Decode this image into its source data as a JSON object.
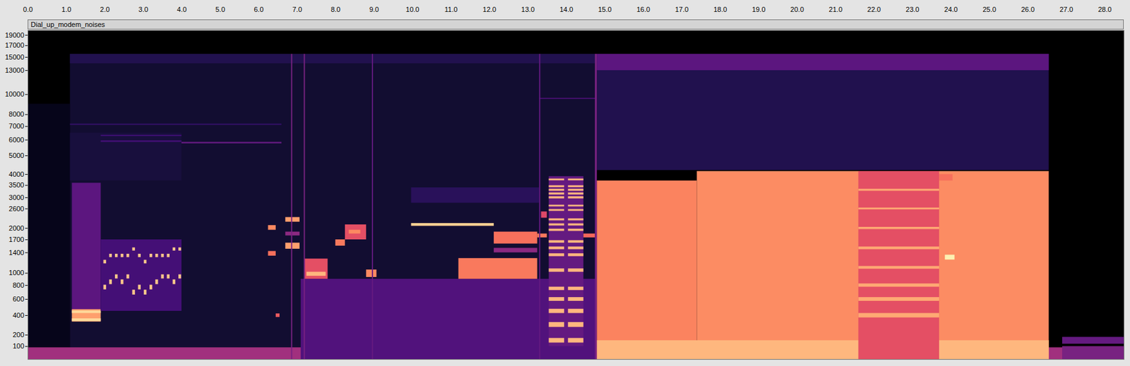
{
  "chart_data": {
    "type": "heatmap",
    "title": "Dial_up_modem_noises",
    "xlim": [
      0,
      28.5
    ],
    "xticks": [
      {
        "value": 0,
        "label": "0.0"
      },
      {
        "value": 1,
        "label": "1.0"
      },
      {
        "value": 2,
        "label": "2.0"
      },
      {
        "value": 3,
        "label": "3.0"
      },
      {
        "value": 4,
        "label": "4.0"
      },
      {
        "value": 5,
        "label": "5.0"
      },
      {
        "value": 6,
        "label": "6.0"
      },
      {
        "value": 7,
        "label": "7.0"
      },
      {
        "value": 8,
        "label": "8.0"
      },
      {
        "value": 9,
        "label": "9.0"
      },
      {
        "value": 10,
        "label": "10.0"
      },
      {
        "value": 11,
        "label": "11.0"
      },
      {
        "value": 12,
        "label": "12.0"
      },
      {
        "value": 13,
        "label": "13.0"
      },
      {
        "value": 14,
        "label": "14.0"
      },
      {
        "value": 15,
        "label": "15.0"
      },
      {
        "value": 16,
        "label": "16.0"
      },
      {
        "value": 17,
        "label": "17.0"
      },
      {
        "value": 18,
        "label": "18.0"
      },
      {
        "value": 19,
        "label": "19.0"
      },
      {
        "value": 20,
        "label": "20.0"
      },
      {
        "value": 21,
        "label": "21.0"
      },
      {
        "value": 22,
        "label": "22.0"
      },
      {
        "value": 23,
        "label": "23.0"
      },
      {
        "value": 24,
        "label": "24.0"
      },
      {
        "value": 25,
        "label": "25.0"
      },
      {
        "value": 26,
        "label": "26.0"
      },
      {
        "value": 27,
        "label": "27.0"
      },
      {
        "value": 28,
        "label": "28.0"
      }
    ],
    "ylim": [
      0,
      20000
    ],
    "yticks": [
      100,
      200,
      400,
      600,
      800,
      1000,
      1400,
      1700,
      2000,
      2600,
      3000,
      3500,
      4000,
      5000,
      6000,
      7000,
      8000,
      10000,
      13000,
      15000,
      17000,
      19000
    ],
    "grid": false,
    "zlim": [
      0,
      100
    ],
    "cells": [
      {
        "t0": 0,
        "t1": 1.1,
        "f0": 0,
        "f1": 9000,
        "level": 5
      },
      {
        "t0": 1.1,
        "t1": 14.8,
        "f0": 0,
        "f1": 15500,
        "level": 9
      },
      {
        "t0": 1.1,
        "t1": 14.8,
        "f0": 14000,
        "f1": 15500,
        "level": 14
      },
      {
        "t0": 0,
        "t1": 27.2,
        "f0": 0,
        "f1": 90,
        "level": 45
      },
      {
        "t0": 1.1,
        "t1": 4.0,
        "f0": 3700,
        "f1": 6500,
        "level": 11
      },
      {
        "t0": 1.15,
        "t1": 1.9,
        "f0": 450,
        "f1": 3600,
        "level": 28
      },
      {
        "t0": 1.15,
        "t1": 1.9,
        "f0": 330,
        "f1": 470,
        "level": 80
      },
      {
        "t0": 1.15,
        "t1": 1.9,
        "f0": 335,
        "f1": 365,
        "level": 92
      },
      {
        "t0": 1.15,
        "t1": 1.9,
        "f0": 425,
        "f1": 455,
        "level": 92
      },
      {
        "t0": 1.9,
        "t1": 4.0,
        "f0": 450,
        "f1": 1700,
        "level": 22
      },
      {
        "t0": 1.9,
        "t1": 4.0,
        "f0": 5850,
        "f1": 5950,
        "level": 22
      },
      {
        "t0": 1.9,
        "t1": 4.0,
        "f0": 6250,
        "f1": 6350,
        "level": 20
      },
      {
        "t0": 1.97,
        "t1": 2.04,
        "f0": 735,
        "f1": 805,
        "level": 88
      },
      {
        "t0": 1.97,
        "t1": 2.04,
        "f0": 1175,
        "f1": 1245,
        "level": 88
      },
      {
        "t0": 2.12,
        "t1": 2.19,
        "f0": 815,
        "f1": 890,
        "level": 88
      },
      {
        "t0": 2.12,
        "t1": 2.19,
        "f0": 1300,
        "f1": 1370,
        "level": 88
      },
      {
        "t0": 2.27,
        "t1": 2.34,
        "f0": 905,
        "f1": 975,
        "level": 88
      },
      {
        "t0": 2.27,
        "t1": 2.34,
        "f0": 1300,
        "f1": 1370,
        "level": 88
      },
      {
        "t0": 2.42,
        "t1": 2.49,
        "f0": 815,
        "f1": 890,
        "level": 88
      },
      {
        "t0": 2.42,
        "t1": 2.49,
        "f0": 1300,
        "f1": 1370,
        "level": 88
      },
      {
        "t0": 2.57,
        "t1": 2.64,
        "f0": 905,
        "f1": 975,
        "level": 88
      },
      {
        "t0": 2.57,
        "t1": 2.64,
        "f0": 1300,
        "f1": 1370,
        "level": 88
      },
      {
        "t0": 2.72,
        "t1": 2.79,
        "f0": 660,
        "f1": 730,
        "level": 88
      },
      {
        "t0": 2.72,
        "t1": 2.79,
        "f0": 1440,
        "f1": 1510,
        "level": 88
      },
      {
        "t0": 2.87,
        "t1": 2.94,
        "f0": 735,
        "f1": 805,
        "level": 88
      },
      {
        "t0": 2.87,
        "t1": 2.94,
        "f0": 1300,
        "f1": 1370,
        "level": 88
      },
      {
        "t0": 3.02,
        "t1": 3.09,
        "f0": 660,
        "f1": 730,
        "level": 88
      },
      {
        "t0": 3.02,
        "t1": 3.09,
        "f0": 1175,
        "f1": 1245,
        "level": 88
      },
      {
        "t0": 3.17,
        "t1": 3.24,
        "f0": 735,
        "f1": 805,
        "level": 88
      },
      {
        "t0": 3.17,
        "t1": 3.24,
        "f0": 1300,
        "f1": 1370,
        "level": 88
      },
      {
        "t0": 3.32,
        "t1": 3.39,
        "f0": 815,
        "f1": 890,
        "level": 88
      },
      {
        "t0": 3.32,
        "t1": 3.39,
        "f0": 1300,
        "f1": 1370,
        "level": 88
      },
      {
        "t0": 3.47,
        "t1": 3.54,
        "f0": 905,
        "f1": 975,
        "level": 88
      },
      {
        "t0": 3.47,
        "t1": 3.54,
        "f0": 1300,
        "f1": 1370,
        "level": 88
      },
      {
        "t0": 3.62,
        "t1": 3.69,
        "f0": 905,
        "f1": 975,
        "level": 88
      },
      {
        "t0": 3.62,
        "t1": 3.69,
        "f0": 1300,
        "f1": 1370,
        "level": 88
      },
      {
        "t0": 3.77,
        "t1": 3.84,
        "f0": 815,
        "f1": 890,
        "level": 88
      },
      {
        "t0": 3.77,
        "t1": 3.84,
        "f0": 1440,
        "f1": 1510,
        "level": 88
      },
      {
        "t0": 3.92,
        "t1": 3.99,
        "f0": 905,
        "f1": 975,
        "level": 88
      },
      {
        "t0": 3.92,
        "t1": 3.99,
        "f0": 1440,
        "f1": 1510,
        "level": 88
      },
      {
        "t0": 4.0,
        "t1": 6.6,
        "f0": 5750,
        "f1": 5850,
        "level": 30
      },
      {
        "t0": 1.1,
        "t1": 6.6,
        "f0": 7100,
        "f1": 7200,
        "level": 18
      },
      {
        "t0": 6.25,
        "t1": 6.45,
        "f0": 1950,
        "f1": 2080,
        "level": 75
      },
      {
        "t0": 6.25,
        "t1": 6.45,
        "f0": 1330,
        "f1": 1430,
        "level": 70
      },
      {
        "t0": 6.45,
        "t1": 6.55,
        "f0": 380,
        "f1": 420,
        "level": 65
      },
      {
        "t0": 6.7,
        "t1": 7.07,
        "f0": 2180,
        "f1": 2320,
        "level": 80
      },
      {
        "t0": 6.7,
        "t1": 7.07,
        "f0": 1480,
        "f1": 1620,
        "level": 80
      },
      {
        "t0": 6.7,
        "t1": 7.07,
        "f0": 1800,
        "f1": 1900,
        "level": 40
      },
      {
        "t0": 7.1,
        "t1": 14.8,
        "f0": 0,
        "f1": 900,
        "level": 25
      },
      {
        "t0": 7.2,
        "t1": 7.8,
        "f0": 900,
        "f1": 1270,
        "level": 62
      },
      {
        "t0": 7.25,
        "t1": 7.75,
        "f0": 950,
        "f1": 1020,
        "level": 85
      },
      {
        "t0": 8.0,
        "t1": 8.25,
        "f0": 1550,
        "f1": 1700,
        "level": 72
      },
      {
        "t0": 8.25,
        "t1": 8.8,
        "f0": 1700,
        "f1": 2100,
        "level": 62
      },
      {
        "t0": 8.35,
        "t1": 8.65,
        "f0": 1850,
        "f1": 1950,
        "level": 75
      },
      {
        "t0": 8.8,
        "t1": 9.07,
        "f0": 930,
        "f1": 1060,
        "level": 75
      },
      {
        "t0": 9.97,
        "t1": 12.12,
        "f0": 2060,
        "f1": 2140,
        "level": 90
      },
      {
        "t0": 9.97,
        "t1": 13.3,
        "f0": 2800,
        "f1": 3400,
        "level": 16
      },
      {
        "t0": 11.2,
        "t1": 13.25,
        "f0": 900,
        "f1": 1280,
        "level": 72
      },
      {
        "t0": 12.12,
        "t1": 13.25,
        "f0": 1600,
        "f1": 1900,
        "level": 70
      },
      {
        "t0": 12.12,
        "t1": 13.25,
        "f0": 1400,
        "f1": 1500,
        "level": 40
      },
      {
        "t0": 13.25,
        "t1": 13.5,
        "f0": 1750,
        "f1": 1850,
        "level": 72
      },
      {
        "t0": 13.35,
        "t1": 13.5,
        "f0": 2300,
        "f1": 2500,
        "level": 60
      },
      {
        "t0": 13.55,
        "t1": 14.45,
        "f0": 100,
        "f1": 3900,
        "level": 30
      },
      {
        "t0": 13.55,
        "t1": 13.95,
        "f0": 130,
        "f1": 170,
        "level": 85
      },
      {
        "t0": 13.55,
        "t1": 13.95,
        "f0": 275,
        "f1": 325,
        "level": 85
      },
      {
        "t0": 13.55,
        "t1": 13.95,
        "f0": 425,
        "f1": 475,
        "level": 85
      },
      {
        "t0": 13.55,
        "t1": 13.95,
        "f0": 575,
        "f1": 625,
        "level": 85
      },
      {
        "t0": 13.55,
        "t1": 13.95,
        "f0": 725,
        "f1": 775,
        "level": 85
      },
      {
        "t0": 13.55,
        "t1": 13.95,
        "f0": 1020,
        "f1": 1080,
        "level": 85
      },
      {
        "t0": 13.55,
        "t1": 13.95,
        "f0": 1320,
        "f1": 1380,
        "level": 85
      },
      {
        "t0": 13.55,
        "t1": 13.95,
        "f0": 1470,
        "f1": 1530,
        "level": 85
      },
      {
        "t0": 13.55,
        "t1": 13.95,
        "f0": 1620,
        "f1": 1680,
        "level": 85
      },
      {
        "t0": 13.55,
        "t1": 13.95,
        "f0": 1920,
        "f1": 1980,
        "level": 85
      },
      {
        "t0": 13.55,
        "t1": 13.95,
        "f0": 2070,
        "f1": 2130,
        "level": 85
      },
      {
        "t0": 13.55,
        "t1": 13.95,
        "f0": 2220,
        "f1": 2280,
        "level": 85
      },
      {
        "t0": 13.55,
        "t1": 13.95,
        "f0": 2520,
        "f1": 2580,
        "level": 85
      },
      {
        "t0": 13.55,
        "t1": 13.95,
        "f0": 2670,
        "f1": 2730,
        "level": 85
      },
      {
        "t0": 13.55,
        "t1": 13.95,
        "f0": 2960,
        "f1": 3040,
        "level": 85
      },
      {
        "t0": 13.55,
        "t1": 13.95,
        "f0": 3110,
        "f1": 3190,
        "level": 85
      },
      {
        "t0": 13.55,
        "t1": 13.95,
        "f0": 3260,
        "f1": 3340,
        "level": 85
      },
      {
        "t0": 13.55,
        "t1": 13.95,
        "f0": 3410,
        "f1": 3490,
        "level": 85
      },
      {
        "t0": 13.55,
        "t1": 13.95,
        "f0": 3710,
        "f1": 3790,
        "level": 85
      },
      {
        "t0": 14.05,
        "t1": 14.45,
        "f0": 130,
        "f1": 170,
        "level": 85
      },
      {
        "t0": 14.05,
        "t1": 14.45,
        "f0": 275,
        "f1": 325,
        "level": 85
      },
      {
        "t0": 14.05,
        "t1": 14.45,
        "f0": 425,
        "f1": 475,
        "level": 85
      },
      {
        "t0": 14.05,
        "t1": 14.45,
        "f0": 575,
        "f1": 625,
        "level": 85
      },
      {
        "t0": 14.05,
        "t1": 14.45,
        "f0": 725,
        "f1": 775,
        "level": 85
      },
      {
        "t0": 14.05,
        "t1": 14.45,
        "f0": 1020,
        "f1": 1080,
        "level": 85
      },
      {
        "t0": 14.05,
        "t1": 14.45,
        "f0": 1320,
        "f1": 1380,
        "level": 85
      },
      {
        "t0": 14.05,
        "t1": 14.45,
        "f0": 1470,
        "f1": 1530,
        "level": 85
      },
      {
        "t0": 14.05,
        "t1": 14.45,
        "f0": 1620,
        "f1": 1680,
        "level": 85
      },
      {
        "t0": 14.05,
        "t1": 14.45,
        "f0": 1920,
        "f1": 1980,
        "level": 85
      },
      {
        "t0": 14.05,
        "t1": 14.45,
        "f0": 2070,
        "f1": 2130,
        "level": 85
      },
      {
        "t0": 14.05,
        "t1": 14.45,
        "f0": 2220,
        "f1": 2280,
        "level": 85
      },
      {
        "t0": 14.05,
        "t1": 14.45,
        "f0": 2520,
        "f1": 2580,
        "level": 85
      },
      {
        "t0": 14.05,
        "t1": 14.45,
        "f0": 2670,
        "f1": 2730,
        "level": 85
      },
      {
        "t0": 14.05,
        "t1": 14.45,
        "f0": 2960,
        "f1": 3040,
        "level": 85
      },
      {
        "t0": 14.05,
        "t1": 14.45,
        "f0": 3110,
        "f1": 3190,
        "level": 85
      },
      {
        "t0": 14.05,
        "t1": 14.45,
        "f0": 3260,
        "f1": 3340,
        "level": 85
      },
      {
        "t0": 14.05,
        "t1": 14.45,
        "f0": 3410,
        "f1": 3490,
        "level": 85
      },
      {
        "t0": 14.05,
        "t1": 14.45,
        "f0": 3710,
        "f1": 3790,
        "level": 85
      },
      {
        "t0": 14.45,
        "t1": 14.75,
        "f0": 1750,
        "f1": 1850,
        "level": 68
      },
      {
        "t0": 13.3,
        "t1": 14.8,
        "f0": 9500,
        "f1": 9600,
        "level": 25
      },
      {
        "t0": 14.8,
        "t1": 26.55,
        "f0": 4200,
        "f1": 15500,
        "level": 14
      },
      {
        "t0": 14.8,
        "t1": 26.55,
        "f0": 13000,
        "f1": 15500,
        "level": 28
      },
      {
        "t0": 14.8,
        "t1": 17.4,
        "f0": 0,
        "f1": 3700,
        "level": 74
      },
      {
        "t0": 17.4,
        "t1": 26.55,
        "f0": 0,
        "f1": 4150,
        "level": 76
      },
      {
        "t0": 14.8,
        "t1": 26.55,
        "f0": 0,
        "f1": 150,
        "level": 85
      },
      {
        "t0": 21.6,
        "t1": 23.7,
        "f0": 0,
        "f1": 4150,
        "level": 62
      },
      {
        "t0": 21.6,
        "t1": 23.7,
        "f0": 375,
        "f1": 425,
        "level": 82
      },
      {
        "t0": 21.6,
        "t1": 23.7,
        "f0": 575,
        "f1": 625,
        "level": 82
      },
      {
        "t0": 21.6,
        "t1": 23.7,
        "f0": 775,
        "f1": 825,
        "level": 82
      },
      {
        "t0": 21.6,
        "t1": 23.7,
        "f0": 1075,
        "f1": 1125,
        "level": 82
      },
      {
        "t0": 21.6,
        "t1": 23.7,
        "f0": 1470,
        "f1": 1530,
        "level": 82
      },
      {
        "t0": 21.6,
        "t1": 23.7,
        "f0": 1970,
        "f1": 2030,
        "level": 82
      },
      {
        "t0": 21.6,
        "t1": 23.7,
        "f0": 2570,
        "f1": 2630,
        "level": 82
      },
      {
        "t0": 21.6,
        "t1": 23.7,
        "f0": 3260,
        "f1": 3340,
        "level": 82
      },
      {
        "t0": 23.7,
        "t1": 24.05,
        "f0": 3700,
        "f1": 4000,
        "level": 70
      },
      {
        "t0": 23.85,
        "t1": 24.1,
        "f0": 1250,
        "f1": 1350,
        "level": 97
      },
      {
        "t0": 6.85,
        "t1": 6.88,
        "f0": 0,
        "f1": 15500,
        "level": 35
      },
      {
        "t0": 7.18,
        "t1": 7.21,
        "f0": 0,
        "f1": 15500,
        "level": 35
      },
      {
        "t0": 8.95,
        "t1": 8.98,
        "f0": 0,
        "f1": 15500,
        "level": 30
      },
      {
        "t0": 13.3,
        "t1": 13.33,
        "f0": 0,
        "f1": 15500,
        "level": 30
      },
      {
        "t0": 14.75,
        "t1": 14.8,
        "f0": 0,
        "f1": 15500,
        "level": 35
      },
      {
        "t0": 26.9,
        "t1": 28.5,
        "f0": 120,
        "f1": 180,
        "level": 30
      },
      {
        "t0": 26.9,
        "t1": 28.5,
        "f0": 0,
        "f1": 100,
        "level": 35
      }
    ]
  }
}
